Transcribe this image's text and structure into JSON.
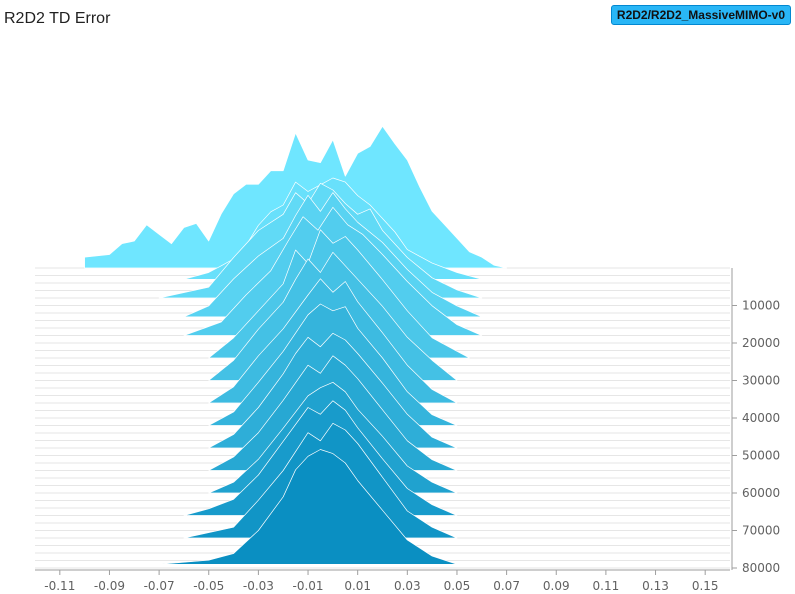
{
  "title": "R2D2 TD Error",
  "run_tag": "R2D2/R2D2_MassiveMIMO-v0",
  "chart_data": {
    "type": "ridgeline-histogram",
    "x_ticks": [
      "-0.11",
      "-0.09",
      "-0.07",
      "-0.05",
      "-0.03",
      "-0.01",
      "0.01",
      "0.03",
      "0.05",
      "0.07",
      "0.09",
      "0.11",
      "0.13",
      "0.15"
    ],
    "xlim": [
      -0.12,
      0.16
    ],
    "y_ticks": [
      "10000",
      "20000",
      "30000",
      "40000",
      "50000",
      "60000",
      "70000",
      "80000"
    ],
    "ylim": [
      0,
      80000
    ],
    "colors": {
      "back": "#6fe6ff",
      "front": "#0a8fc2"
    },
    "steps": [
      {
        "step": 0,
        "points": [
          [
            -0.1,
            0.0
          ],
          [
            -0.1,
            0.08
          ],
          [
            -0.09,
            0.1
          ],
          [
            -0.085,
            0.18
          ],
          [
            -0.08,
            0.2
          ],
          [
            -0.075,
            0.32
          ],
          [
            -0.07,
            0.25
          ],
          [
            -0.065,
            0.18
          ],
          [
            -0.06,
            0.3
          ],
          [
            -0.055,
            0.33
          ],
          [
            -0.05,
            0.2
          ],
          [
            -0.045,
            0.4
          ],
          [
            -0.04,
            0.55
          ],
          [
            -0.035,
            0.62
          ],
          [
            -0.03,
            0.62
          ],
          [
            -0.025,
            0.72
          ],
          [
            -0.02,
            0.72
          ],
          [
            -0.015,
            1.0
          ],
          [
            -0.01,
            0.8
          ],
          [
            -0.005,
            0.78
          ],
          [
            0.0,
            0.95
          ],
          [
            0.005,
            0.68
          ],
          [
            0.01,
            0.85
          ],
          [
            0.015,
            0.9
          ],
          [
            0.02,
            1.05
          ],
          [
            0.025,
            0.92
          ],
          [
            0.03,
            0.8
          ],
          [
            0.035,
            0.6
          ],
          [
            0.04,
            0.42
          ],
          [
            0.045,
            0.32
          ],
          [
            0.05,
            0.22
          ],
          [
            0.055,
            0.12
          ],
          [
            0.06,
            0.08
          ],
          [
            0.065,
            0.02
          ],
          [
            0.07,
            0.0
          ]
        ]
      },
      {
        "step": 3000,
        "points": [
          [
            -0.06,
            0.0
          ],
          [
            -0.05,
            0.05
          ],
          [
            -0.045,
            0.1
          ],
          [
            -0.04,
            0.15
          ],
          [
            -0.035,
            0.25
          ],
          [
            -0.03,
            0.4
          ],
          [
            -0.025,
            0.5
          ],
          [
            -0.02,
            0.55
          ],
          [
            -0.015,
            0.72
          ],
          [
            -0.01,
            0.65
          ],
          [
            -0.005,
            0.7
          ],
          [
            0.0,
            0.75
          ],
          [
            0.005,
            0.72
          ],
          [
            0.01,
            0.62
          ],
          [
            0.015,
            0.55
          ],
          [
            0.02,
            0.45
          ],
          [
            0.025,
            0.35
          ],
          [
            0.03,
            0.22
          ],
          [
            0.04,
            0.12
          ],
          [
            0.05,
            0.05
          ],
          [
            0.06,
            0.0
          ]
        ]
      },
      {
        "step": 8000,
        "points": [
          [
            -0.07,
            0.0
          ],
          [
            -0.05,
            0.08
          ],
          [
            -0.04,
            0.3
          ],
          [
            -0.03,
            0.5
          ],
          [
            -0.02,
            0.62
          ],
          [
            -0.015,
            0.78
          ],
          [
            -0.01,
            0.7
          ],
          [
            -0.005,
            0.85
          ],
          [
            0.0,
            0.8
          ],
          [
            0.005,
            0.7
          ],
          [
            0.01,
            0.62
          ],
          [
            0.015,
            0.66
          ],
          [
            0.02,
            0.5
          ],
          [
            0.03,
            0.3
          ],
          [
            0.04,
            0.15
          ],
          [
            0.05,
            0.06
          ],
          [
            0.06,
            0.0
          ]
        ]
      },
      {
        "step": 13000,
        "points": [
          [
            -0.06,
            0.0
          ],
          [
            -0.05,
            0.08
          ],
          [
            -0.04,
            0.28
          ],
          [
            -0.03,
            0.45
          ],
          [
            -0.02,
            0.58
          ],
          [
            -0.015,
            0.75
          ],
          [
            -0.01,
            0.9
          ],
          [
            -0.005,
            0.78
          ],
          [
            0.0,
            0.92
          ],
          [
            0.005,
            0.8
          ],
          [
            0.01,
            0.7
          ],
          [
            0.02,
            0.55
          ],
          [
            0.03,
            0.35
          ],
          [
            0.04,
            0.18
          ],
          [
            0.05,
            0.08
          ],
          [
            0.06,
            0.0
          ]
        ]
      },
      {
        "step": 18000,
        "points": [
          [
            -0.06,
            0.0
          ],
          [
            -0.045,
            0.1
          ],
          [
            -0.035,
            0.3
          ],
          [
            -0.025,
            0.48
          ],
          [
            -0.018,
            0.7
          ],
          [
            -0.012,
            0.88
          ],
          [
            -0.006,
            0.78
          ],
          [
            0.0,
            0.95
          ],
          [
            0.006,
            0.82
          ],
          [
            0.012,
            0.75
          ],
          [
            0.02,
            0.6
          ],
          [
            0.03,
            0.4
          ],
          [
            0.04,
            0.22
          ],
          [
            0.05,
            0.08
          ],
          [
            0.06,
            0.0
          ]
        ]
      },
      {
        "step": 24000,
        "points": [
          [
            -0.05,
            0.0
          ],
          [
            -0.04,
            0.15
          ],
          [
            -0.03,
            0.35
          ],
          [
            -0.02,
            0.55
          ],
          [
            -0.015,
            0.8
          ],
          [
            -0.01,
            0.7
          ],
          [
            -0.005,
            0.95
          ],
          [
            0.0,
            0.85
          ],
          [
            0.005,
            0.9
          ],
          [
            0.01,
            0.8
          ],
          [
            0.02,
            0.58
          ],
          [
            0.03,
            0.35
          ],
          [
            0.04,
            0.15
          ],
          [
            0.05,
            0.05
          ],
          [
            0.055,
            0.0
          ]
        ]
      },
      {
        "step": 30000,
        "points": [
          [
            -0.05,
            0.0
          ],
          [
            -0.04,
            0.15
          ],
          [
            -0.03,
            0.38
          ],
          [
            -0.02,
            0.58
          ],
          [
            -0.015,
            0.75
          ],
          [
            -0.01,
            0.9
          ],
          [
            -0.005,
            0.8
          ],
          [
            0.0,
            0.95
          ],
          [
            0.005,
            0.85
          ],
          [
            0.01,
            0.75
          ],
          [
            0.02,
            0.55
          ],
          [
            0.03,
            0.32
          ],
          [
            0.04,
            0.15
          ],
          [
            0.05,
            0.0
          ]
        ]
      },
      {
        "step": 36000,
        "points": [
          [
            -0.05,
            0.0
          ],
          [
            -0.04,
            0.12
          ],
          [
            -0.03,
            0.35
          ],
          [
            -0.02,
            0.55
          ],
          [
            -0.01,
            0.8
          ],
          [
            -0.005,
            0.92
          ],
          [
            0.0,
            0.82
          ],
          [
            0.005,
            0.9
          ],
          [
            0.01,
            0.75
          ],
          [
            0.02,
            0.52
          ],
          [
            0.03,
            0.28
          ],
          [
            0.04,
            0.1
          ],
          [
            0.05,
            0.0
          ]
        ]
      },
      {
        "step": 42000,
        "points": [
          [
            -0.05,
            0.0
          ],
          [
            -0.04,
            0.1
          ],
          [
            -0.03,
            0.32
          ],
          [
            -0.02,
            0.55
          ],
          [
            -0.01,
            0.82
          ],
          [
            -0.005,
            0.9
          ],
          [
            0.0,
            0.85
          ],
          [
            0.005,
            0.88
          ],
          [
            0.01,
            0.72
          ],
          [
            0.02,
            0.5
          ],
          [
            0.03,
            0.25
          ],
          [
            0.04,
            0.08
          ],
          [
            0.05,
            0.0
          ]
        ]
      },
      {
        "step": 48000,
        "points": [
          [
            -0.05,
            0.0
          ],
          [
            -0.04,
            0.1
          ],
          [
            -0.03,
            0.3
          ],
          [
            -0.02,
            0.55
          ],
          [
            -0.015,
            0.7
          ],
          [
            -0.01,
            0.82
          ],
          [
            -0.005,
            0.75
          ],
          [
            0.0,
            0.85
          ],
          [
            0.005,
            0.8
          ],
          [
            0.01,
            0.7
          ],
          [
            0.02,
            0.48
          ],
          [
            0.03,
            0.25
          ],
          [
            0.04,
            0.08
          ],
          [
            0.05,
            0.0
          ]
        ]
      },
      {
        "step": 54000,
        "points": [
          [
            -0.05,
            0.0
          ],
          [
            -0.04,
            0.1
          ],
          [
            -0.03,
            0.28
          ],
          [
            -0.02,
            0.52
          ],
          [
            -0.01,
            0.78
          ],
          [
            -0.005,
            0.72
          ],
          [
            0.0,
            0.85
          ],
          [
            0.005,
            0.78
          ],
          [
            0.01,
            0.68
          ],
          [
            0.02,
            0.45
          ],
          [
            0.03,
            0.22
          ],
          [
            0.04,
            0.08
          ],
          [
            0.05,
            0.0
          ]
        ]
      },
      {
        "step": 60000,
        "points": [
          [
            -0.05,
            0.0
          ],
          [
            -0.04,
            0.08
          ],
          [
            -0.03,
            0.25
          ],
          [
            -0.02,
            0.48
          ],
          [
            -0.01,
            0.72
          ],
          [
            -0.005,
            0.78
          ],
          [
            0.0,
            0.82
          ],
          [
            0.005,
            0.75
          ],
          [
            0.01,
            0.62
          ],
          [
            0.02,
            0.42
          ],
          [
            0.03,
            0.2
          ],
          [
            0.04,
            0.08
          ],
          [
            0.05,
            0.0
          ]
        ]
      },
      {
        "step": 66000,
        "points": [
          [
            -0.06,
            0.0
          ],
          [
            -0.05,
            0.05
          ],
          [
            -0.04,
            0.12
          ],
          [
            -0.03,
            0.3
          ],
          [
            -0.02,
            0.55
          ],
          [
            -0.01,
            0.8
          ],
          [
            -0.005,
            0.75
          ],
          [
            0.0,
            0.85
          ],
          [
            0.005,
            0.78
          ],
          [
            0.01,
            0.65
          ],
          [
            0.02,
            0.42
          ],
          [
            0.03,
            0.2
          ],
          [
            0.04,
            0.08
          ],
          [
            0.05,
            0.0
          ]
        ]
      },
      {
        "step": 72000,
        "points": [
          [
            -0.06,
            0.0
          ],
          [
            -0.04,
            0.08
          ],
          [
            -0.03,
            0.28
          ],
          [
            -0.02,
            0.5
          ],
          [
            -0.01,
            0.78
          ],
          [
            -0.005,
            0.72
          ],
          [
            0.0,
            0.85
          ],
          [
            0.005,
            0.8
          ],
          [
            0.01,
            0.7
          ],
          [
            0.02,
            0.45
          ],
          [
            0.03,
            0.2
          ],
          [
            0.04,
            0.08
          ],
          [
            0.05,
            0.0
          ]
        ]
      },
      {
        "step": 79000,
        "points": [
          [
            -0.07,
            0.0
          ],
          [
            -0.05,
            0.03
          ],
          [
            -0.04,
            0.08
          ],
          [
            -0.03,
            0.25
          ],
          [
            -0.02,
            0.5
          ],
          [
            -0.015,
            0.7
          ],
          [
            -0.01,
            0.8
          ],
          [
            -0.005,
            0.85
          ],
          [
            0.0,
            0.82
          ],
          [
            0.005,
            0.75
          ],
          [
            0.01,
            0.62
          ],
          [
            0.02,
            0.4
          ],
          [
            0.03,
            0.18
          ],
          [
            0.04,
            0.06
          ],
          [
            0.05,
            0.0
          ]
        ]
      }
    ]
  }
}
